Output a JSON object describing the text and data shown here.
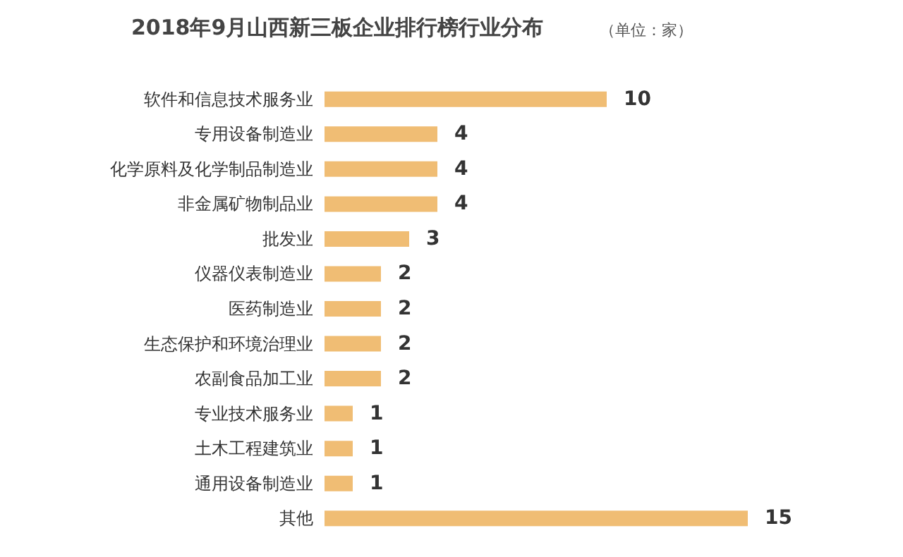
{
  "chart_data": {
    "type": "bar",
    "orientation": "horizontal",
    "title": "2018年9月山西新三板企业排行榜行业分布",
    "subtitle": "（单位：家）",
    "categories": [
      "软件和信息技术服务业",
      "专用设备制造业",
      "化学原料及化学制品制造业",
      "非金属矿物制品业",
      "批发业",
      "仪器仪表制造业",
      "医药制造业",
      "生态保护和环境治理业",
      "农副食品加工业",
      "专业技术服务业",
      "土木工程建筑业",
      "通用设备制造业",
      "其他"
    ],
    "values": [
      10,
      4,
      4,
      4,
      3,
      2,
      2,
      2,
      2,
      1,
      1,
      1,
      15
    ],
    "color": "#f0bd74",
    "data_labels": true,
    "tick_labels": "y"
  }
}
